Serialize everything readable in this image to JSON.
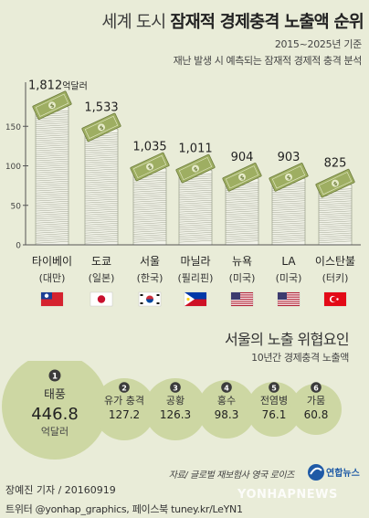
{
  "title": {
    "pre": "세계 도시",
    "main": "잠재적 경제충격 노출액 순위"
  },
  "period": "2015~2025년 기준",
  "subtitle": "재난 발생 시 예측되는 잠재적 경제적 충격 분석",
  "colors": {
    "background": "#e9ecd8",
    "bubble": "#cdd7a3",
    "bubble_dark": "#3b3b3b",
    "money": "#9eae62",
    "money_edge": "#6d7c3c",
    "axis": "#555555"
  },
  "chart_data": [
    {
      "type": "bar",
      "y_unit": "억달러",
      "ylim": [
        0,
        2000
      ],
      "yticks": [
        {
          "value": 0,
          "label": "0"
        },
        {
          "value": 500,
          "label": "50"
        },
        {
          "value": 1000,
          "label": "100"
        },
        {
          "value": 1500,
          "label": "150"
        }
      ],
      "categories": [
        "타이베이",
        "도쿄",
        "서울",
        "마닐라",
        "뉴욕",
        "LA",
        "이스탄불"
      ],
      "countries": [
        "(대만)",
        "(일본)",
        "(한국)",
        "(필리핀)",
        "(미국)",
        "(미국)",
        "(터키)"
      ],
      "flags": [
        "taiwan-flag",
        "japan-flag",
        "korea-flag",
        "philippines-flag",
        "usa-flag",
        "usa-flag",
        "turkey-flag"
      ],
      "values": [
        1812,
        1533,
        1035,
        1011,
        904,
        903,
        825
      ],
      "value_labels": [
        "1,812",
        "1,533",
        "1,035",
        "1,011",
        "904",
        "903",
        "825"
      ],
      "first_value_unit": "억달러",
      "bar_style": "stacked-money-bills"
    },
    {
      "type": "bubble",
      "title": "서울의 노출 위협요인",
      "subtitle": "10년간 경제충격 노출액",
      "unit": "억달러",
      "items": [
        {
          "rank": "1",
          "label": "태풍",
          "value": 446.8,
          "value_label": "446.8"
        },
        {
          "rank": "2",
          "label": "유가 충격",
          "value": 127.2,
          "value_label": "127.2"
        },
        {
          "rank": "3",
          "label": "공황",
          "value": 126.3,
          "value_label": "126.3"
        },
        {
          "rank": "4",
          "label": "홍수",
          "value": 98.3,
          "value_label": "98.3"
        },
        {
          "rank": "5",
          "label": "전염병",
          "value": 76.1,
          "value_label": "76.1"
        },
        {
          "rank": "6",
          "label": "가뭄",
          "value": 60.8,
          "value_label": "60.8"
        }
      ]
    }
  ],
  "source": "자료/ 글로벌 재보험사 영국 로이즈",
  "agency_logo": "연합뉴스",
  "footer": {
    "author": "장예진 기자 / 20160919",
    "social": "트위터 @yonhap_graphics, 페이스북 tuney.kr/LeYN1"
  },
  "watermark": "YONHAPNEWS"
}
